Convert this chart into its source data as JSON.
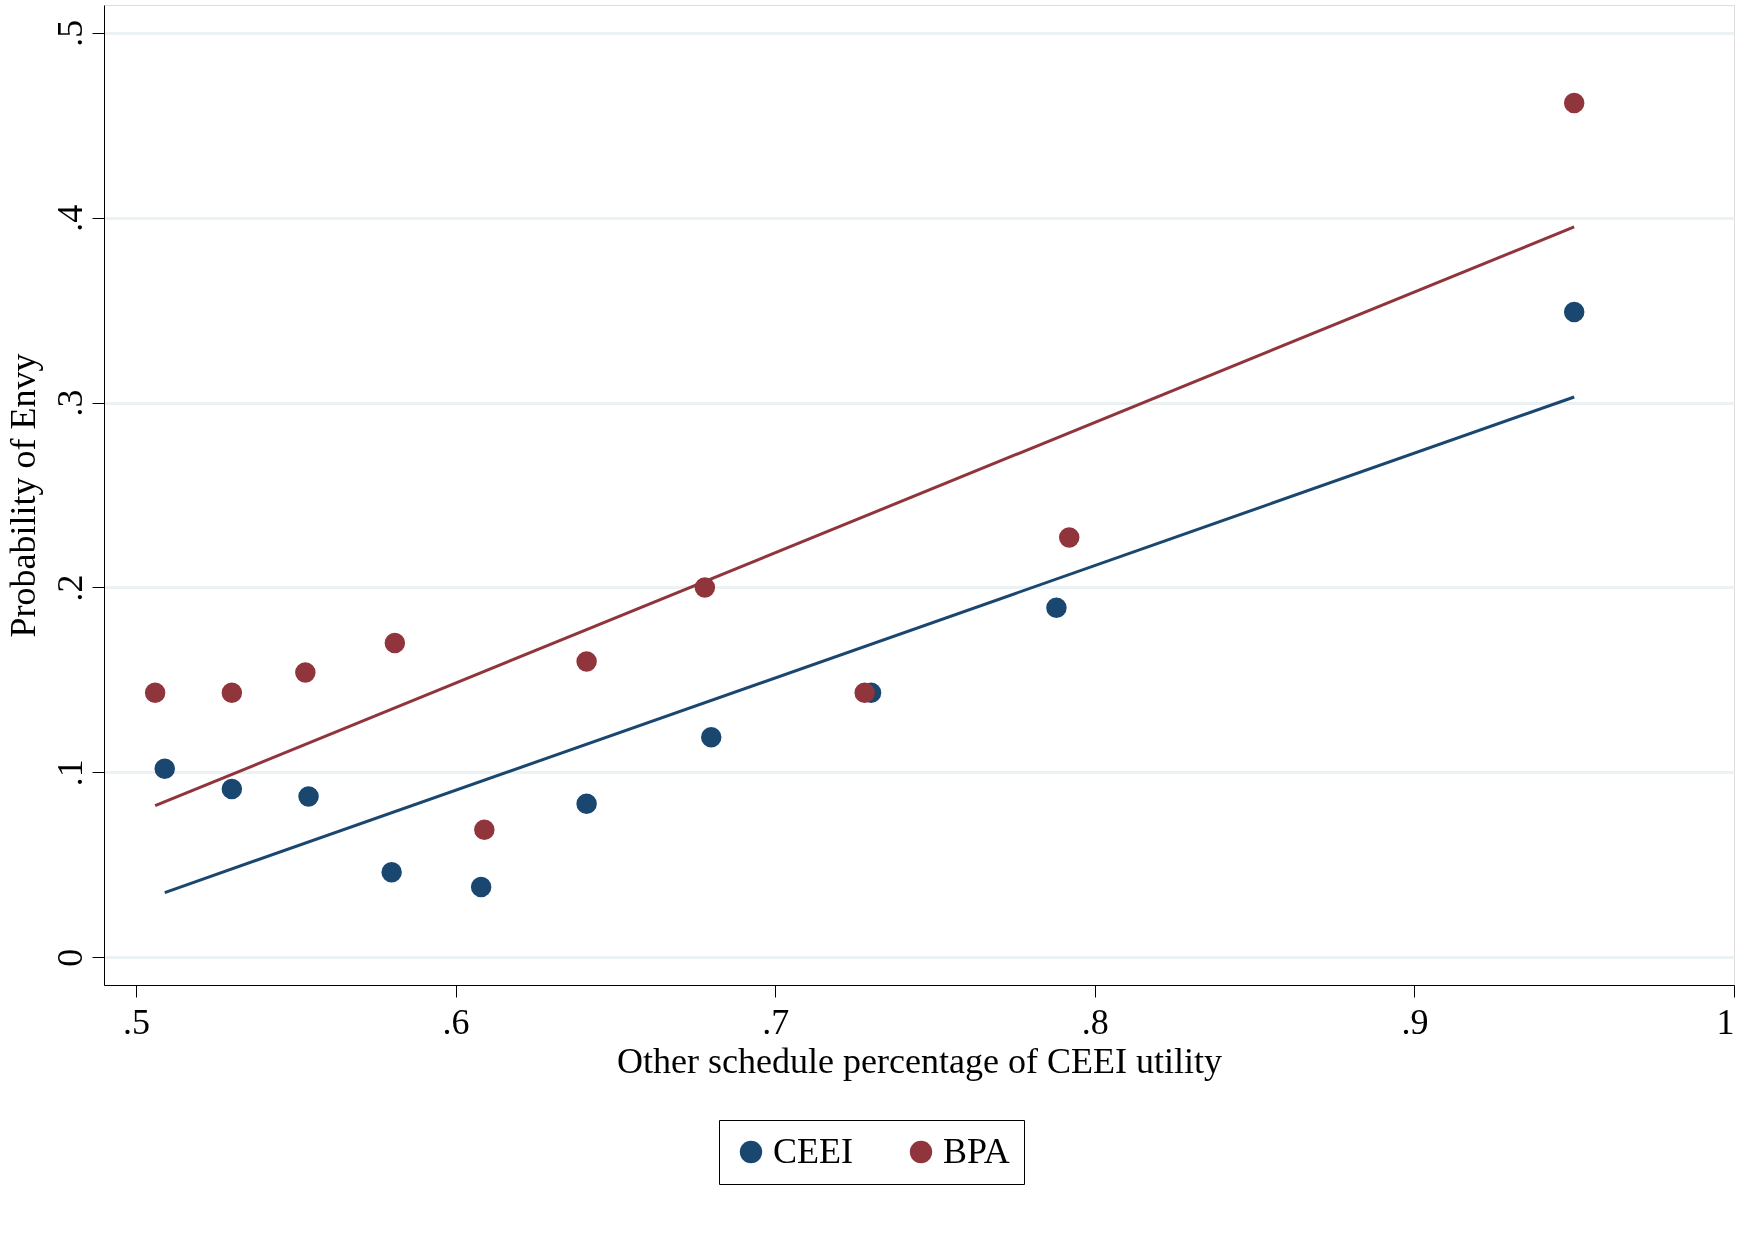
{
  "chart_data": {
    "type": "scatter",
    "xlabel": "Other schedule percentage of CEEI utility",
    "ylabel": "Probability of Envy",
    "xlim": [
      0.49,
      1.0
    ],
    "ylim": [
      -0.015,
      0.515
    ],
    "xticks": [
      {
        "value": 0.5,
        "label": ".5"
      },
      {
        "value": 0.6,
        "label": ".6"
      },
      {
        "value": 0.7,
        "label": ".7"
      },
      {
        "value": 0.8,
        "label": ".8"
      },
      {
        "value": 0.9,
        "label": ".9"
      },
      1
    ],
    "yticks": [
      0,
      {
        "value": 0.1,
        "label": ".1"
      },
      {
        "value": 0.2,
        "label": ".2"
      },
      {
        "value": 0.3,
        "label": ".3"
      },
      {
        "value": 0.4,
        "label": ".4"
      },
      {
        "value": 0.5,
        "label": ".5"
      }
    ],
    "grid": "y",
    "legend": "bottom",
    "marker": "circle",
    "series": [
      {
        "name": "CEEI",
        "color": "#1a476f",
        "x": [
          0.509,
          0.53,
          0.554,
          0.58,
          0.608,
          0.641,
          0.68,
          0.73,
          0.788,
          0.95
        ],
        "values": [
          0.102,
          0.091,
          0.087,
          0.046,
          0.038,
          0.083,
          0.119,
          0.143,
          0.189,
          0.349
        ]
      },
      {
        "name": "BPA",
        "color": "#90353b",
        "x": [
          0.506,
          0.53,
          0.553,
          0.581,
          0.609,
          0.641,
          0.678,
          0.728,
          0.792,
          0.95
        ],
        "values": [
          0.143,
          0.143,
          0.154,
          0.17,
          0.069,
          0.16,
          0.2,
          0.143,
          0.227,
          0.462
        ]
      },
      {
        "type": "line",
        "color": "#1a476f",
        "marker": "none",
        "x": [
          0.509,
          0.95
        ],
        "values": [
          0.035,
          0.303
        ]
      },
      {
        "type": "line",
        "color": "#90353b",
        "marker": "none",
        "x": [
          0.506,
          0.95
        ],
        "values": [
          0.082,
          0.395
        ]
      }
    ]
  }
}
